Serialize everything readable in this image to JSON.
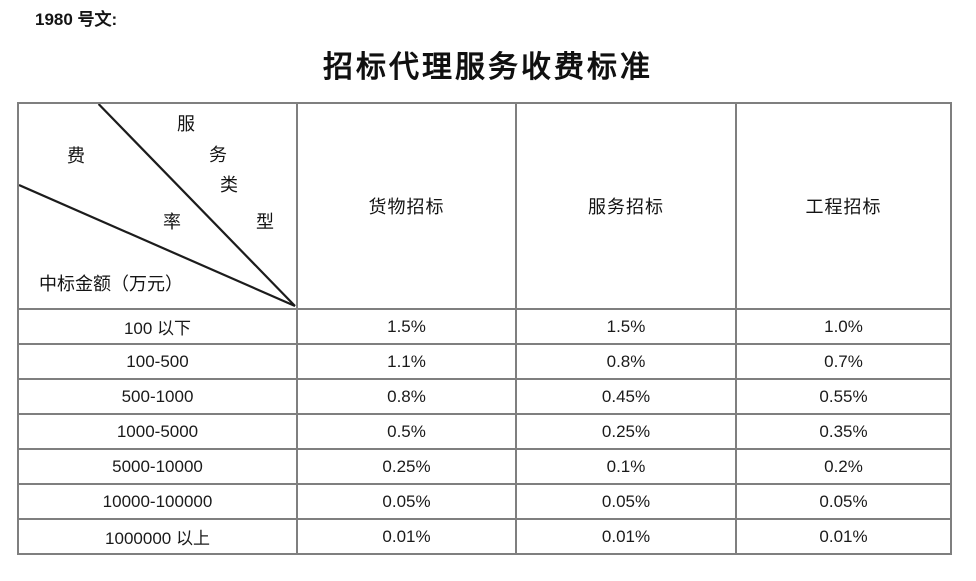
{
  "page": {
    "ref_label": "1980 号文:",
    "title": "招标代理服务收费标准"
  },
  "table": {
    "corner": {
      "service_type_chars": [
        "服",
        "务",
        "类",
        "型"
      ],
      "fee_rate_chars": [
        "费",
        "率"
      ],
      "amount_label": "中标金额（万元）"
    },
    "columns": [
      "货物招标",
      "服务招标",
      "工程招标"
    ],
    "rows": [
      {
        "range": "100 以下",
        "values": [
          "1.5%",
          "1.5%",
          "1.0%"
        ]
      },
      {
        "range": "100-500",
        "values": [
          "1.1%",
          "0.8%",
          "0.7%"
        ]
      },
      {
        "range": "500-1000",
        "values": [
          "0.8%",
          "0.45%",
          "0.55%"
        ]
      },
      {
        "range": "1000-5000",
        "values": [
          "0.5%",
          "0.25%",
          "0.35%"
        ]
      },
      {
        "range": "5000-10000",
        "values": [
          "0.25%",
          "0.1%",
          "0.2%"
        ]
      },
      {
        "range": "10000-100000",
        "values": [
          "0.05%",
          "0.05%",
          "0.05%"
        ]
      },
      {
        "range": "1000000 以上",
        "values": [
          "0.01%",
          "0.01%",
          "0.01%"
        ]
      }
    ],
    "line_color": "#1c1c1c",
    "grid_color": "#7f7f7f"
  }
}
